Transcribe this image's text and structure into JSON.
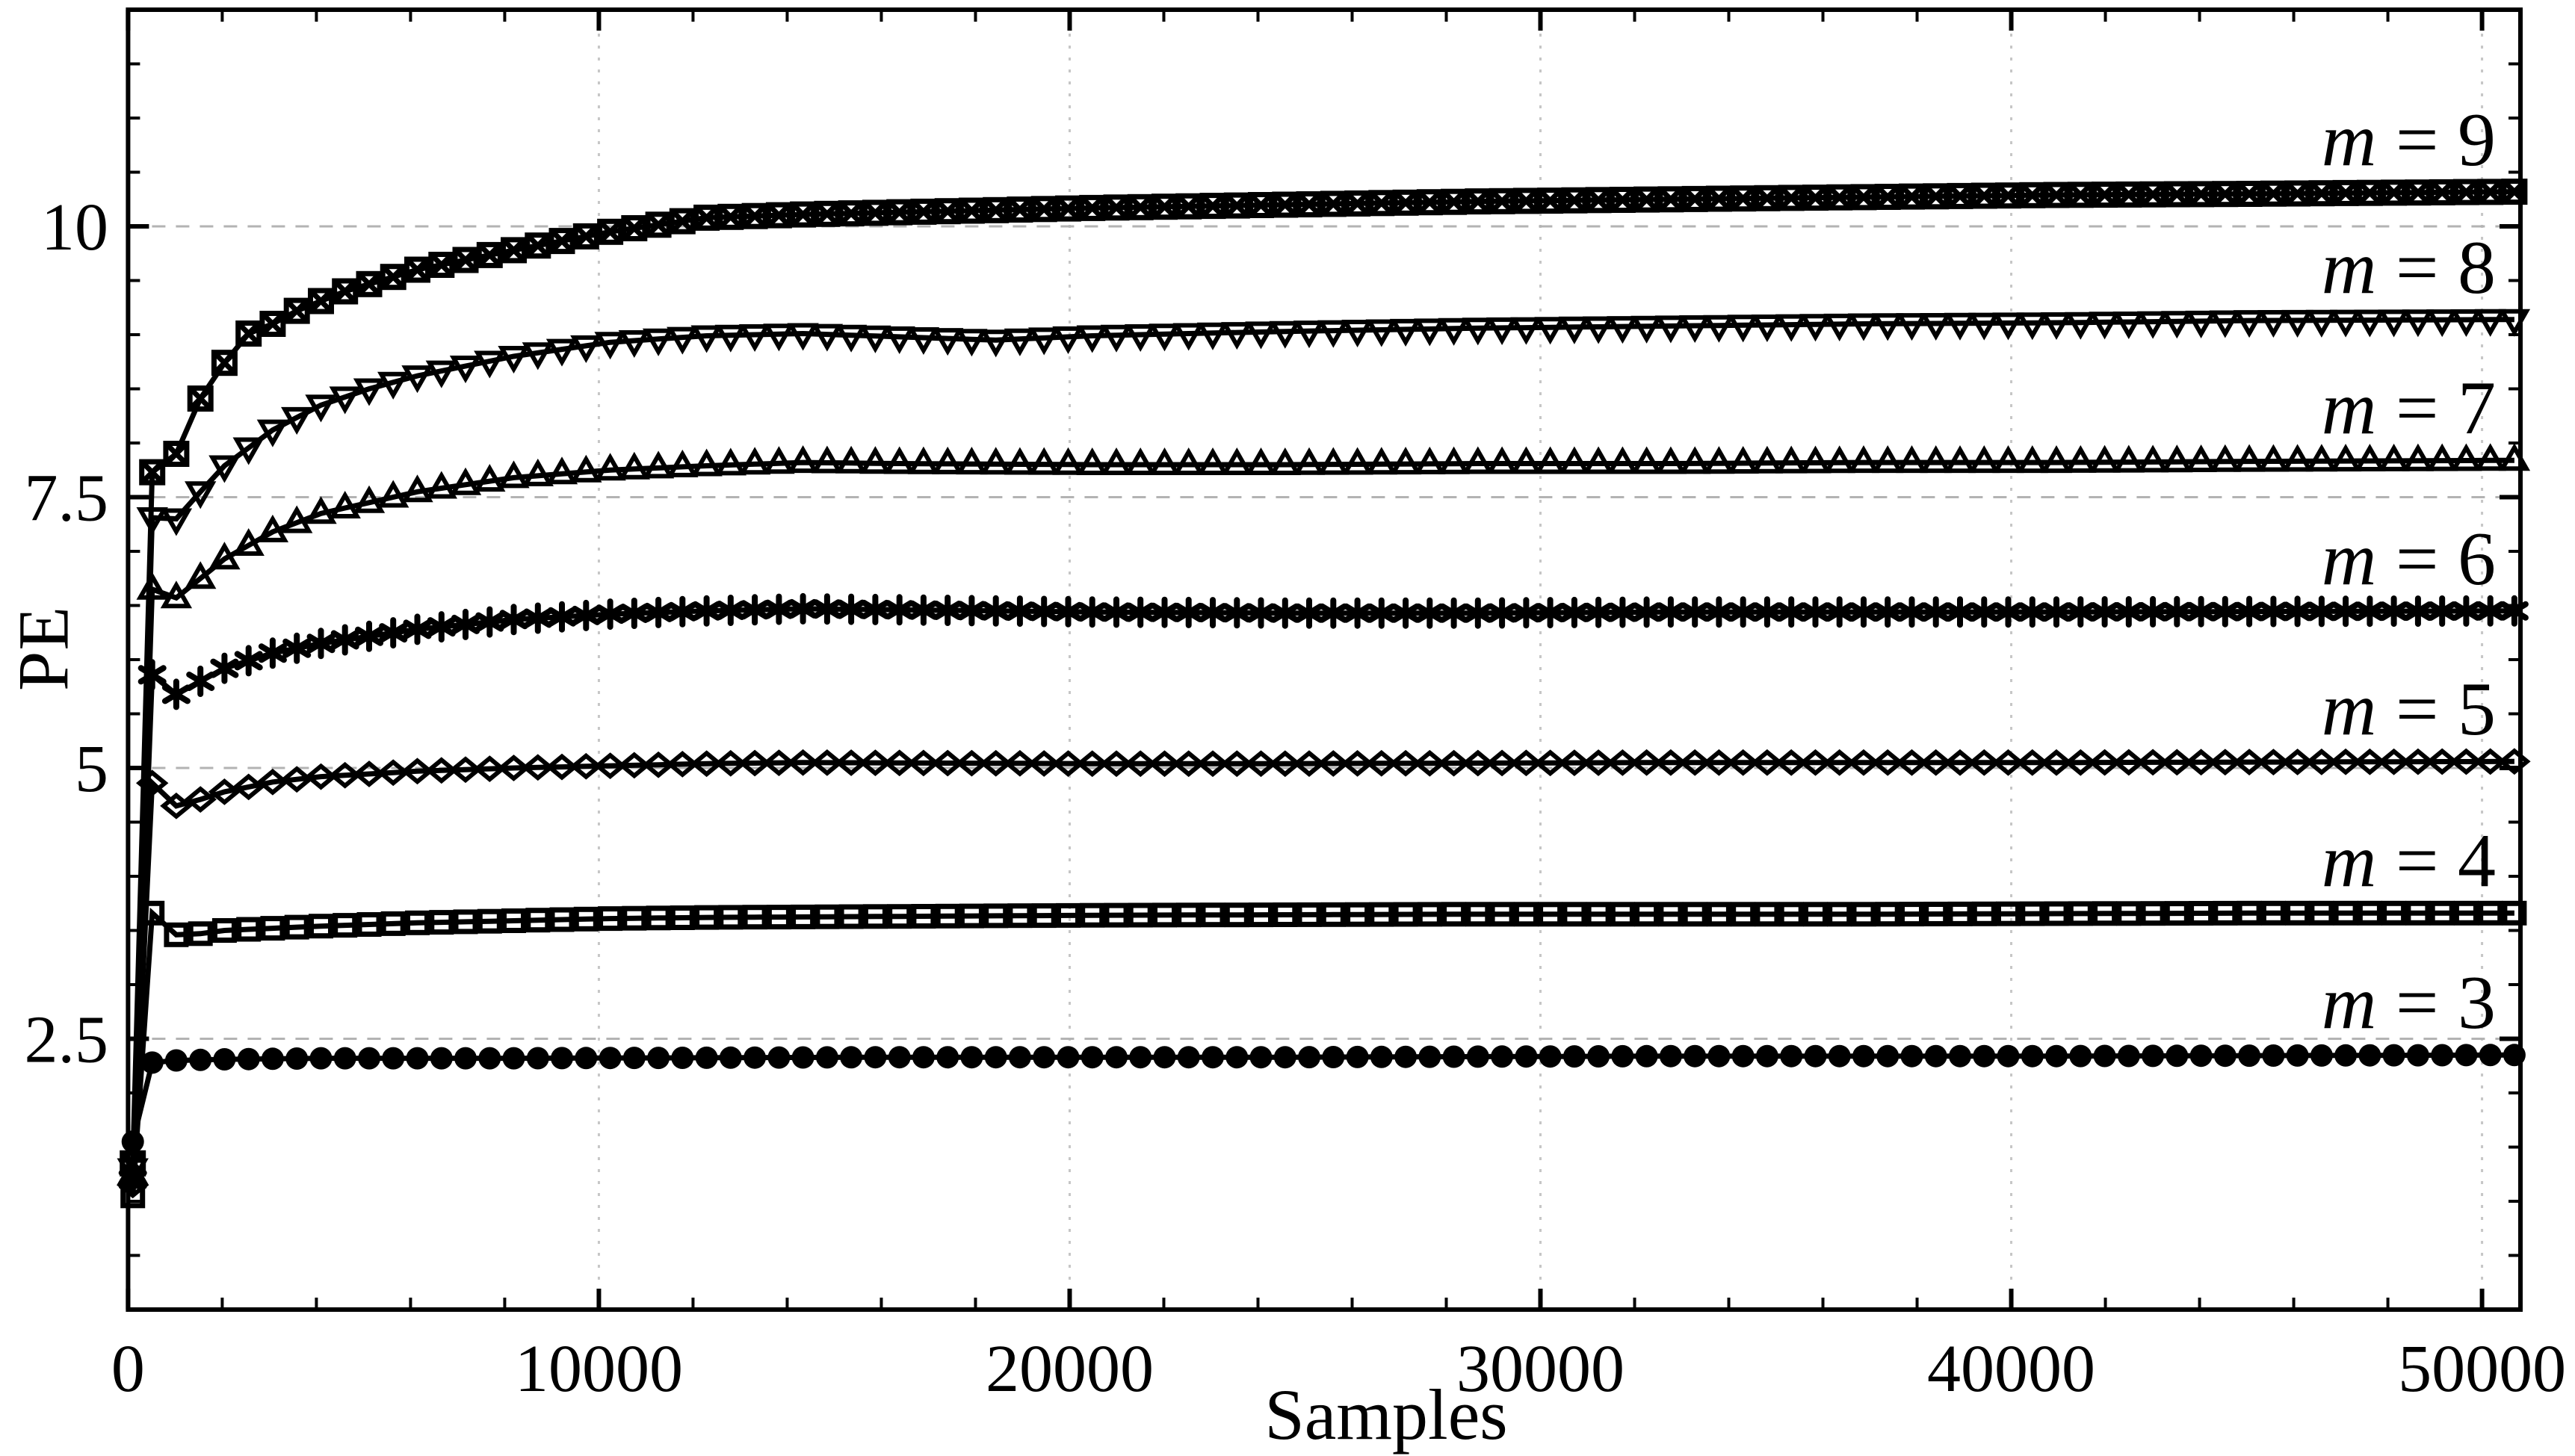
{
  "colors": {
    "ink": "#000000",
    "background": "#ffffff",
    "grid_horizontal": "#b3b3b3",
    "grid_vertical": "#c6c6c6"
  },
  "chart_data": {
    "type": "line",
    "title": "",
    "xlabel": "Samples",
    "ylabel": "PE",
    "xlim": [
      0,
      50816
    ],
    "ylim": [
      0,
      12
    ],
    "x_ticks": [
      0,
      10000,
      20000,
      30000,
      40000,
      50000
    ],
    "x_tick_labels": [
      "0",
      "10000",
      "20000",
      "30000",
      "40000",
      "50000"
    ],
    "y_ticks": [
      2.5,
      5,
      7.5,
      10
    ],
    "y_tick_labels": [
      "2.5",
      "5",
      "7.5",
      "10"
    ],
    "x_minor_step": 2000,
    "y_minor_step": 0.5,
    "grid": {
      "horizontal": "dashed",
      "vertical": "dotted",
      "on": true
    },
    "legend_position": "right-inline-labels",
    "marker_step": 512,
    "first_sample": 100,
    "last_sample": 50688,
    "series": [
      {
        "name": "m = 9",
        "label_var": "m",
        "label_rest": " = 9",
        "marker": "boxtimes",
        "final_value": 10.32,
        "control_points": [
          [
            100,
            1.35
          ],
          [
            320,
            5.9
          ],
          [
            512,
            7.73
          ],
          [
            768,
            7.82
          ],
          [
            1024,
            7.9
          ],
          [
            1536,
            8.41
          ],
          [
            2048,
            8.74
          ],
          [
            2560,
            9.01
          ],
          [
            3072,
            9.1
          ],
          [
            3584,
            9.22
          ],
          [
            4608,
            9.4
          ],
          [
            6144,
            9.6
          ],
          [
            8192,
            9.78
          ],
          [
            10240,
            9.95
          ],
          [
            12288,
            10.08
          ],
          [
            14336,
            10.11
          ],
          [
            16384,
            10.13
          ],
          [
            20480,
            10.17
          ],
          [
            24576,
            10.2
          ],
          [
            28672,
            10.23
          ],
          [
            32768,
            10.25
          ],
          [
            36864,
            10.27
          ],
          [
            40960,
            10.29
          ],
          [
            45056,
            10.3
          ],
          [
            50688,
            10.32
          ]
        ]
      },
      {
        "name": "m = 8",
        "label_var": "m",
        "label_rest": " = 8",
        "marker": "triangle-down-open",
        "final_value": 9.14,
        "control_points": [
          [
            100,
            1.3
          ],
          [
            320,
            5.5
          ],
          [
            512,
            7.31
          ],
          [
            768,
            7.31
          ],
          [
            1024,
            7.3
          ],
          [
            1536,
            7.55
          ],
          [
            2048,
            7.79
          ],
          [
            3072,
            8.12
          ],
          [
            4096,
            8.35
          ],
          [
            5120,
            8.5
          ],
          [
            6144,
            8.62
          ],
          [
            8192,
            8.8
          ],
          [
            10240,
            8.93
          ],
          [
            12288,
            8.99
          ],
          [
            14336,
            9.01
          ],
          [
            16384,
            8.98
          ],
          [
            18432,
            8.95
          ],
          [
            20480,
            8.99
          ],
          [
            24576,
            9.03
          ],
          [
            28672,
            9.06
          ],
          [
            32768,
            9.08
          ],
          [
            36864,
            9.1
          ],
          [
            40960,
            9.11
          ],
          [
            45056,
            9.13
          ],
          [
            50688,
            9.14
          ]
        ]
      },
      {
        "name": "m = 7",
        "label_var": "m",
        "label_rest": " = 7",
        "marker": "triangle-up-open",
        "final_value": 7.84,
        "control_points": [
          [
            100,
            1.25
          ],
          [
            320,
            5.1
          ],
          [
            512,
            6.65
          ],
          [
            768,
            6.61
          ],
          [
            1024,
            6.57
          ],
          [
            1536,
            6.75
          ],
          [
            2048,
            6.93
          ],
          [
            3072,
            7.18
          ],
          [
            4096,
            7.35
          ],
          [
            6144,
            7.55
          ],
          [
            8192,
            7.68
          ],
          [
            10240,
            7.75
          ],
          [
            12288,
            7.79
          ],
          [
            14336,
            7.82
          ],
          [
            16384,
            7.81
          ],
          [
            20480,
            7.8
          ],
          [
            24576,
            7.8
          ],
          [
            28672,
            7.81
          ],
          [
            32768,
            7.81
          ],
          [
            36864,
            7.82
          ],
          [
            40960,
            7.82
          ],
          [
            45056,
            7.83
          ],
          [
            50688,
            7.84
          ]
        ]
      },
      {
        "name": "m = 6",
        "label_var": "m",
        "label_rest": " = 6",
        "marker": "asterisk",
        "final_value": 6.45,
        "control_points": [
          [
            100,
            1.2
          ],
          [
            320,
            4.6
          ],
          [
            512,
            5.86
          ],
          [
            768,
            5.77
          ],
          [
            1024,
            5.68
          ],
          [
            1536,
            5.8
          ],
          [
            2048,
            5.92
          ],
          [
            3072,
            6.06
          ],
          [
            4096,
            6.15
          ],
          [
            6144,
            6.28
          ],
          [
            8192,
            6.37
          ],
          [
            10240,
            6.42
          ],
          [
            12288,
            6.45
          ],
          [
            14336,
            6.47
          ],
          [
            16384,
            6.46
          ],
          [
            20480,
            6.44
          ],
          [
            24576,
            6.43
          ],
          [
            28672,
            6.43
          ],
          [
            32768,
            6.44
          ],
          [
            40960,
            6.44
          ],
          [
            50688,
            6.45
          ]
        ]
      },
      {
        "name": "m = 5",
        "label_var": "m",
        "label_rest": " = 5",
        "marker": "diamond-open",
        "final_value": 5.06,
        "control_points": [
          [
            100,
            1.15
          ],
          [
            320,
            4.0
          ],
          [
            512,
            4.86
          ],
          [
            768,
            4.76
          ],
          [
            1024,
            4.65
          ],
          [
            1536,
            4.71
          ],
          [
            2048,
            4.78
          ],
          [
            3072,
            4.87
          ],
          [
            4096,
            4.92
          ],
          [
            6144,
            4.97
          ],
          [
            8192,
            5.0
          ],
          [
            10240,
            5.02
          ],
          [
            12288,
            5.04
          ],
          [
            14336,
            5.05
          ],
          [
            20480,
            5.04
          ],
          [
            24576,
            5.04
          ],
          [
            32768,
            5.05
          ],
          [
            40960,
            5.05
          ],
          [
            50688,
            5.06
          ]
        ]
      },
      {
        "name": "m = 4",
        "label_var": "m",
        "label_rest": " = 4",
        "marker": "square-open",
        "final_value": 3.66,
        "control_points": [
          [
            100,
            1.05
          ],
          [
            320,
            3.05
          ],
          [
            512,
            3.66
          ],
          [
            768,
            3.56
          ],
          [
            1024,
            3.46
          ],
          [
            1536,
            3.47
          ],
          [
            2048,
            3.5
          ],
          [
            3072,
            3.52
          ],
          [
            4096,
            3.54
          ],
          [
            6144,
            3.57
          ],
          [
            8192,
            3.59
          ],
          [
            10240,
            3.61
          ],
          [
            12288,
            3.62
          ],
          [
            16384,
            3.63
          ],
          [
            20480,
            3.64
          ],
          [
            28672,
            3.65
          ],
          [
            36864,
            3.65
          ],
          [
            45056,
            3.66
          ],
          [
            50688,
            3.66
          ]
        ]
      },
      {
        "name": "m = 3",
        "label_var": "m",
        "label_rest": " = 3",
        "marker": "circle-filled",
        "final_value": 2.35,
        "control_points": [
          [
            100,
            1.55
          ],
          [
            320,
            2.18
          ],
          [
            512,
            2.28
          ],
          [
            768,
            2.31
          ],
          [
            1024,
            2.3
          ],
          [
            2048,
            2.31
          ],
          [
            4096,
            2.32
          ],
          [
            8192,
            2.32
          ],
          [
            16384,
            2.33
          ],
          [
            24576,
            2.33
          ],
          [
            32768,
            2.34
          ],
          [
            40960,
            2.34
          ],
          [
            50688,
            2.35
          ]
        ]
      }
    ]
  }
}
